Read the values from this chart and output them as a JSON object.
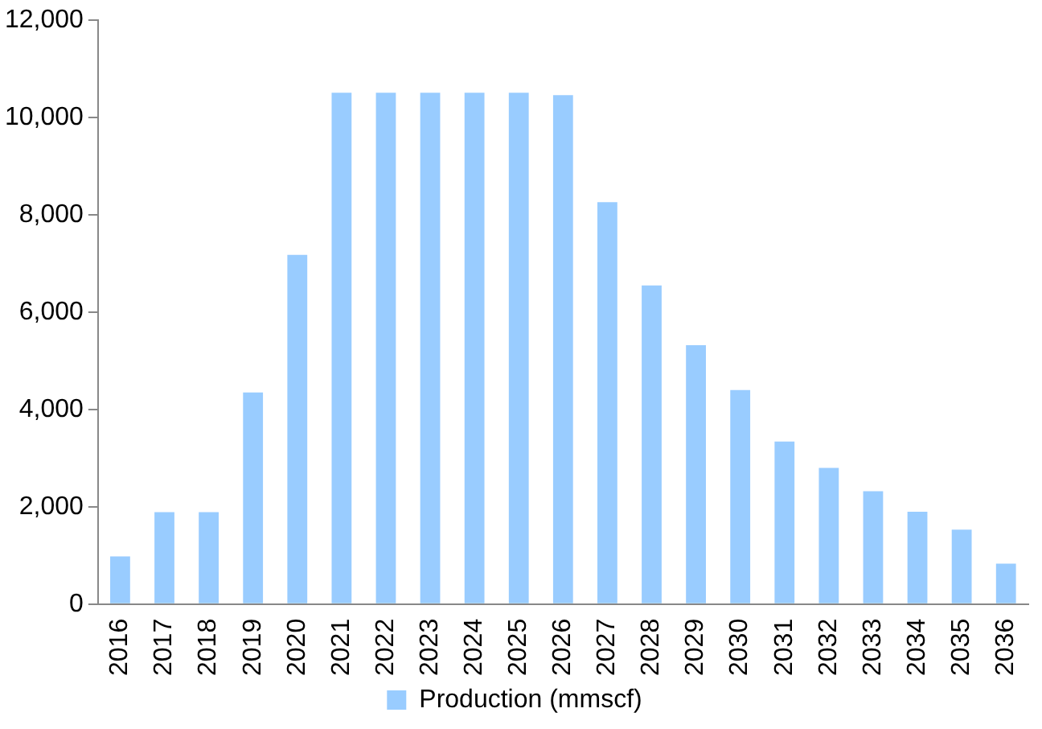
{
  "chart_data": {
    "type": "bar",
    "categories": [
      "2016",
      "2017",
      "2018",
      "2019",
      "2020",
      "2021",
      "2022",
      "2023",
      "2024",
      "2025",
      "2026",
      "2027",
      "2028",
      "2029",
      "2030",
      "2031",
      "2032",
      "2033",
      "2034",
      "2035",
      "2036"
    ],
    "series": [
      {
        "name": "Production (mmscf)",
        "color": "#99ccff",
        "values": [
          980,
          1890,
          1890,
          4350,
          7180,
          10510,
          10510,
          10510,
          10510,
          10510,
          10460,
          8260,
          6550,
          5320,
          4400,
          3340,
          2800,
          2320,
          1900,
          1530,
          830
        ]
      }
    ],
    "ylim": [
      0,
      12000
    ],
    "yticks": [
      {
        "value": 0,
        "label": "0"
      },
      {
        "value": 2000,
        "label": "2,000"
      },
      {
        "value": 4000,
        "label": "4,000"
      },
      {
        "value": 6000,
        "label": "6,000"
      },
      {
        "value": 8000,
        "label": "8,000"
      },
      {
        "value": 10000,
        "label": "10,000"
      },
      {
        "value": 12000,
        "label": "12,000"
      }
    ],
    "grid": false,
    "legend": "bottom"
  }
}
